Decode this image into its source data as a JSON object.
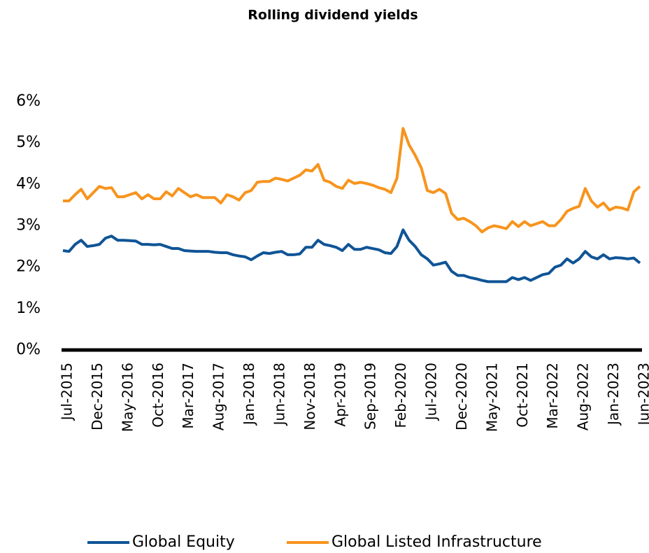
{
  "chart_data": {
    "type": "line",
    "title": "Rolling dividend yields",
    "categories": [
      "Jul-2015",
      null,
      null,
      null,
      null,
      "Dec-2015",
      null,
      null,
      null,
      null,
      "May-2016",
      null,
      null,
      null,
      null,
      "Oct-2016",
      null,
      null,
      null,
      null,
      "Mar-2017",
      null,
      null,
      null,
      null,
      "Aug-2017",
      null,
      null,
      null,
      null,
      "Jan-2018",
      null,
      null,
      null,
      null,
      "Jun-2018",
      null,
      null,
      null,
      null,
      "Nov-2018",
      null,
      null,
      null,
      null,
      "Apr-2019",
      null,
      null,
      null,
      null,
      "Sep-2019",
      null,
      null,
      null,
      null,
      "Feb-2020",
      null,
      null,
      null,
      null,
      "Jul-2020",
      null,
      null,
      null,
      null,
      "Dec-2020",
      null,
      null,
      null,
      null,
      "May-2021",
      null,
      null,
      null,
      null,
      "Oct-2021",
      null,
      null,
      null,
      null,
      "Mar-2022",
      null,
      null,
      null,
      null,
      "Aug-2022",
      null,
      null,
      null,
      null,
      "Jan-2023",
      null,
      null,
      null,
      null,
      "Jun-2023"
    ],
    "series": [
      {
        "name": "Global Equity",
        "color": "#0f5496",
        "values": [
          2.4,
          2.38,
          2.55,
          2.65,
          2.5,
          2.52,
          2.55,
          2.7,
          2.75,
          2.65,
          2.65,
          2.64,
          2.63,
          2.55,
          2.55,
          2.54,
          2.55,
          2.5,
          2.45,
          2.45,
          2.4,
          2.39,
          2.38,
          2.38,
          2.38,
          2.36,
          2.35,
          2.35,
          2.3,
          2.27,
          2.25,
          2.18,
          2.27,
          2.35,
          2.33,
          2.36,
          2.38,
          2.3,
          2.3,
          2.32,
          2.48,
          2.48,
          2.65,
          2.55,
          2.52,
          2.48,
          2.4,
          2.55,
          2.43,
          2.43,
          2.48,
          2.45,
          2.42,
          2.35,
          2.33,
          2.5,
          2.9,
          2.65,
          2.5,
          2.3,
          2.2,
          2.05,
          2.08,
          2.12,
          1.9,
          1.8,
          1.8,
          1.75,
          1.72,
          1.68,
          1.65,
          1.65,
          1.65,
          1.65,
          1.75,
          1.7,
          1.75,
          1.68,
          1.75,
          1.82,
          1.85,
          2.0,
          2.05,
          2.2,
          2.1,
          2.2,
          2.38,
          2.25,
          2.2,
          2.3,
          2.2,
          2.23,
          2.22,
          2.2,
          2.22,
          2.1
        ]
      },
      {
        "name": "Global Listed Infrastructure",
        "color": "#f7941d",
        "values": [
          3.6,
          3.6,
          3.75,
          3.88,
          3.65,
          3.8,
          3.95,
          3.9,
          3.92,
          3.7,
          3.7,
          3.75,
          3.8,
          3.65,
          3.75,
          3.65,
          3.65,
          3.82,
          3.72,
          3.9,
          3.8,
          3.7,
          3.75,
          3.68,
          3.68,
          3.68,
          3.55,
          3.75,
          3.7,
          3.62,
          3.8,
          3.85,
          4.05,
          4.07,
          4.07,
          4.15,
          4.12,
          4.08,
          4.15,
          4.22,
          4.35,
          4.32,
          4.48,
          4.1,
          4.05,
          3.95,
          3.9,
          4.1,
          4.02,
          4.05,
          4.02,
          3.98,
          3.92,
          3.88,
          3.8,
          4.15,
          5.35,
          4.95,
          4.7,
          4.4,
          3.85,
          3.8,
          3.88,
          3.78,
          3.3,
          3.15,
          3.18,
          3.1,
          3.0,
          2.85,
          2.95,
          3.0,
          2.97,
          2.93,
          3.1,
          2.98,
          3.1,
          3.0,
          3.05,
          3.1,
          3.0,
          3.0,
          3.15,
          3.35,
          3.42,
          3.47,
          3.9,
          3.6,
          3.45,
          3.55,
          3.38,
          3.45,
          3.43,
          3.38,
          3.82,
          3.95
        ]
      }
    ],
    "ylim": [
      0,
      6
    ],
    "yticks": [
      {
        "value": 0,
        "label": "0%"
      },
      {
        "value": 1,
        "label": "1%"
      },
      {
        "value": 2,
        "label": "2%"
      },
      {
        "value": 3,
        "label": "3%"
      },
      {
        "value": 4,
        "label": "4%"
      },
      {
        "value": 5,
        "label": "5%"
      },
      {
        "value": 6,
        "label": "6%"
      }
    ],
    "grid": false
  }
}
